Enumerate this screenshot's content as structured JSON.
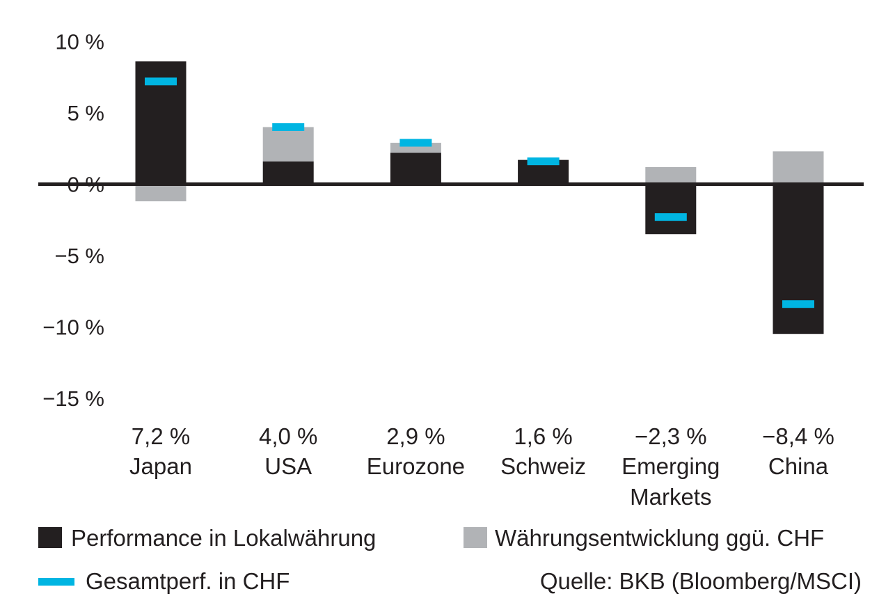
{
  "chart_data": {
    "type": "bar",
    "stacked": true,
    "categories": [
      "Japan",
      "USA",
      "Eurozone",
      "Schweiz",
      "Emerging\nMarkets",
      "China"
    ],
    "value_labels": [
      "7,2 %",
      "4,0 %",
      "2,9 %",
      "1,6 %",
      "−2,3 %",
      "−8,4 %"
    ],
    "series": [
      {
        "name": "Performance in Lokalwährung",
        "kind": "bar",
        "color": "#231f20",
        "values": [
          8.6,
          1.6,
          2.2,
          1.7,
          -3.5,
          -10.5
        ]
      },
      {
        "name": "Währungsentwicklung ggü. CHF",
        "kind": "bar",
        "color": "#b1b3b6",
        "values": [
          -1.2,
          2.4,
          0.7,
          0.0,
          1.2,
          2.3
        ]
      },
      {
        "name": "Gesamtperf. in CHF",
        "kind": "marker",
        "color": "#00b5e2",
        "values": [
          7.2,
          4.0,
          2.9,
          1.6,
          -2.3,
          -8.4
        ]
      }
    ],
    "yticks": [
      10,
      5,
      0,
      -5,
      -10,
      -15
    ],
    "ytick_labels": [
      "10 %",
      "5 %",
      "0 %",
      "−5 %",
      "−10 %",
      "−15 %"
    ],
    "ylim": [
      -15,
      10
    ],
    "grid": false,
    "legend_position": "bottom"
  },
  "source": "Quelle: BKB (Bloomberg/MSCI)"
}
